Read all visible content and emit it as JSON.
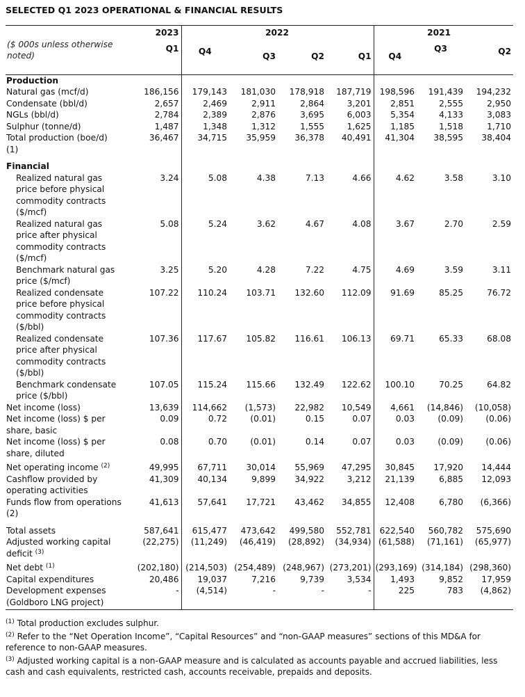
{
  "title": "SELECTED Q1 2023 OPERATIONAL & FINANCIAL RESULTS",
  "header": {
    "note": "($ 000s unless otherwise noted)",
    "years": [
      "2023",
      "2022",
      "2021"
    ],
    "quarters": [
      "Q1",
      "Q4",
      "Q3",
      "Q2",
      "Q1",
      "Q4",
      "Q3",
      "Q2"
    ]
  },
  "rows": [
    {
      "label": "Production",
      "section": true,
      "values": []
    },
    {
      "label": "Natural gas (mcf/d)",
      "values": [
        "186,156",
        "179,143",
        "181,030",
        "178,918",
        "187,719",
        "198,596",
        "191,439",
        "194,232"
      ]
    },
    {
      "label": "Condensate (bbl/d)",
      "values": [
        "2,657",
        "2,469",
        "2,911",
        "2,864",
        "3,201",
        "2,851",
        "2,555",
        "2,950"
      ]
    },
    {
      "label": "NGLs (bbl/d)",
      "values": [
        "2,784",
        "2,389",
        "2,876",
        "3,695",
        "6,003",
        "5,354",
        "4,133",
        "3,083"
      ]
    },
    {
      "label": "Sulphur (tonne/d)",
      "values": [
        "1,487",
        "1,348",
        "1,312",
        "1,555",
        "1,625",
        "1,185",
        "1,518",
        "1,710"
      ]
    },
    {
      "label": "Total production (boe/d)\n(1)",
      "values": [
        "36,467",
        "34,715",
        "35,959",
        "36,378",
        "40,491",
        "41,304",
        "38,595",
        "38,404"
      ]
    },
    {
      "label": "Financial",
      "section": true,
      "gap": true,
      "values": []
    },
    {
      "label": "Realized natural gas\nprice before physical\ncommodity contracts\n($/mcf)",
      "indent": true,
      "values": [
        "3.24",
        "5.08",
        "4.38",
        "7.13",
        "4.66",
        "4.62",
        "3.58",
        "3.10"
      ]
    },
    {
      "label": "Realized natural gas\nprice after physical\ncommodity contracts\n($/mcf)",
      "indent": true,
      "values": [
        "5.08",
        "5.24",
        "3.62",
        "4.67",
        "4.08",
        "3.67",
        "2.70",
        "2.59"
      ]
    },
    {
      "label": "Benchmark natural gas\nprice ($/mcf)",
      "indent": true,
      "values": [
        "3.25",
        "5.20",
        "4.28",
        "7.22",
        "4.75",
        "4.69",
        "3.59",
        "3.11"
      ]
    },
    {
      "label": "Realized condensate\nprice before physical\ncommodity contracts\n($/bbl)",
      "indent": true,
      "values": [
        "107.22",
        "110.24",
        "103.71",
        "132.60",
        "112.09",
        "91.69",
        "85.25",
        "76.72"
      ]
    },
    {
      "label": "Realized condensate\nprice after physical\ncommodity contracts\n($/bbl)",
      "indent": true,
      "values": [
        "107.36",
        "117.67",
        "105.82",
        "116.61",
        "106.13",
        "69.71",
        "65.33",
        "68.08"
      ]
    },
    {
      "label": "Benchmark condensate\nprice ($/bbl)",
      "indent": true,
      "values": [
        "107.05",
        "115.24",
        "115.66",
        "132.49",
        "122.62",
        "100.10",
        "70.25",
        "64.82"
      ]
    },
    {
      "label": "Net income (loss)",
      "values": [
        "13,639",
        "114,662",
        "(1,573)",
        "22,982",
        "10,549",
        "4,661",
        "(14,846)",
        "(10,058)"
      ]
    },
    {
      "label": "Net income (loss) $ per\nshare, basic",
      "values": [
        "0.09",
        "0.72",
        "(0.01)",
        "0.15",
        "0.07",
        "0.03",
        "(0.09)",
        "(0.06)"
      ]
    },
    {
      "label": "Net income (loss) $ per\nshare, diluted",
      "values": [
        "0.08",
        "0.70",
        "(0.01)",
        "0.14",
        "0.07",
        "0.03",
        "(0.09)",
        "(0.06)"
      ]
    },
    {
      "label": "Net operating income",
      "sup": "(2)",
      "gapsm": true,
      "values": [
        "49,995",
        "67,711",
        "30,014",
        "55,969",
        "47,295",
        "30,845",
        "17,920",
        "14,444"
      ]
    },
    {
      "label": "Cashflow provided by\noperating activities",
      "values": [
        "41,309",
        "40,134",
        "9,899",
        "34,922",
        "3,212",
        "21,139",
        "6,885",
        "12,093"
      ]
    },
    {
      "label": "Funds flow from operations\n(2)",
      "values": [
        "41,613",
        "57,641",
        "17,721",
        "43,462",
        "34,855",
        "12,408",
        "6,780",
        "(6,366)"
      ]
    },
    {
      "label": "Total assets",
      "gap": true,
      "values": [
        "587,641",
        "615,477",
        "473,642",
        "499,580",
        "552,781",
        "622,540",
        "560,782",
        "575,690"
      ]
    },
    {
      "label": "Adjusted working capital\ndeficit",
      "sup": "(3)",
      "values": [
        "(22,275)",
        "(11,249)",
        "(46,419)",
        "(28,892)",
        "(34,934)",
        "(61,588)",
        "(71,161)",
        "(65,977)"
      ]
    },
    {
      "label": "Net debt",
      "sup": "(1)",
      "gapsm": true,
      "values": [
        "(202,180)",
        "(214,503)",
        "(254,489)",
        "(248,967)",
        "(273,201)",
        "(293,169)",
        "(314,184)",
        "(298,360)"
      ]
    },
    {
      "label": "Capital expenditures",
      "values": [
        "20,486",
        "19,037",
        "7,216",
        "9,739",
        "3,534",
        "1,493",
        "9,852",
        "17,959"
      ]
    },
    {
      "label": "Development expenses\n(Goldboro LNG project)",
      "last": true,
      "values": [
        "-",
        "(4,514)",
        "-",
        "-",
        "-",
        "225",
        "783",
        "(4,862)"
      ]
    }
  ],
  "footnotes": [
    {
      "mark": "(1)",
      "text": " Total production excludes sulphur."
    },
    {
      "mark": "(2)",
      "text": " Refer to the “Net Operation Income”, “Capital Resources” and “non-GAAP measures” sections of this MD&A for reference to non-GAAP measures."
    },
    {
      "mark": "(3)",
      "text": " Adjusted working capital is a non-GAAP measure and is calculated as accounts payable and accrued liabilities, less cash and cash equivalents, restricted cash, accounts receivable, prepaids and deposits."
    }
  ]
}
